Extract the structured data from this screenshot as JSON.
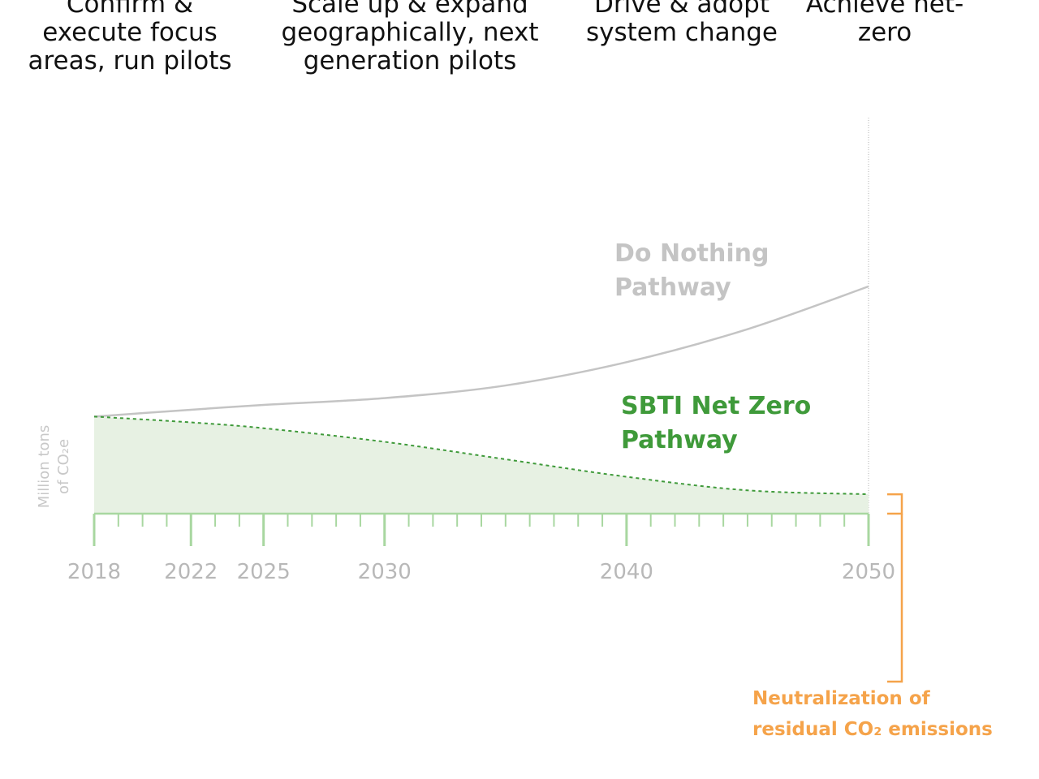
{
  "phases": [
    {
      "text": "Confirm &\nexecute focus\nareas, run pilots"
    },
    {
      "text": "Scale up & expand\ngeographically, next\ngeneration pilots"
    },
    {
      "text": "Drive & adopt\nsystem change"
    },
    {
      "text": "Achieve net-\nzero"
    }
  ],
  "chart_data": {
    "type": "area",
    "title": "",
    "xlabel": "",
    "ylabel": "Million tons of CO₂e",
    "ylabel_lines": [
      "Million tons",
      "of CO₂e"
    ],
    "x_ticks": [
      2018,
      2022,
      2025,
      2030,
      2040,
      2050
    ],
    "x_range": [
      2018,
      2050
    ],
    "y_range": [
      0,
      1
    ],
    "grid": false,
    "series": [
      {
        "name": "Do Nothing Pathway",
        "label_lines": [
          "Do Nothing",
          "Pathway"
        ],
        "style": "solid",
        "color": "#c4c4c4",
        "x": [
          2018,
          2022,
          2025,
          2030,
          2035,
          2040,
          2045,
          2050
        ],
        "values": [
          0.5,
          0.535,
          0.56,
          0.595,
          0.66,
          0.78,
          0.95,
          1.17
        ]
      },
      {
        "name": "SBTI Net Zero Pathway",
        "label_lines": [
          "SBTI Net Zero",
          "Pathway"
        ],
        "style": "dashed",
        "color": "#3f9a3a",
        "fill": "#e7f1e3",
        "x": [
          2018,
          2022,
          2025,
          2030,
          2035,
          2040,
          2045,
          2050
        ],
        "values": [
          0.5,
          0.47,
          0.44,
          0.37,
          0.28,
          0.19,
          0.12,
          0.1
        ]
      }
    ],
    "annotation": {
      "lines": [
        "Neutralization of",
        "residual CO₂ emissions"
      ],
      "color": "#f5a34a",
      "bracket_value": 0.1
    },
    "colors": {
      "axis": "#a8d7a0",
      "tick_label": "#b8b8b8",
      "ylabel": "#c8c8c8",
      "end_line": "#cccccc"
    }
  }
}
